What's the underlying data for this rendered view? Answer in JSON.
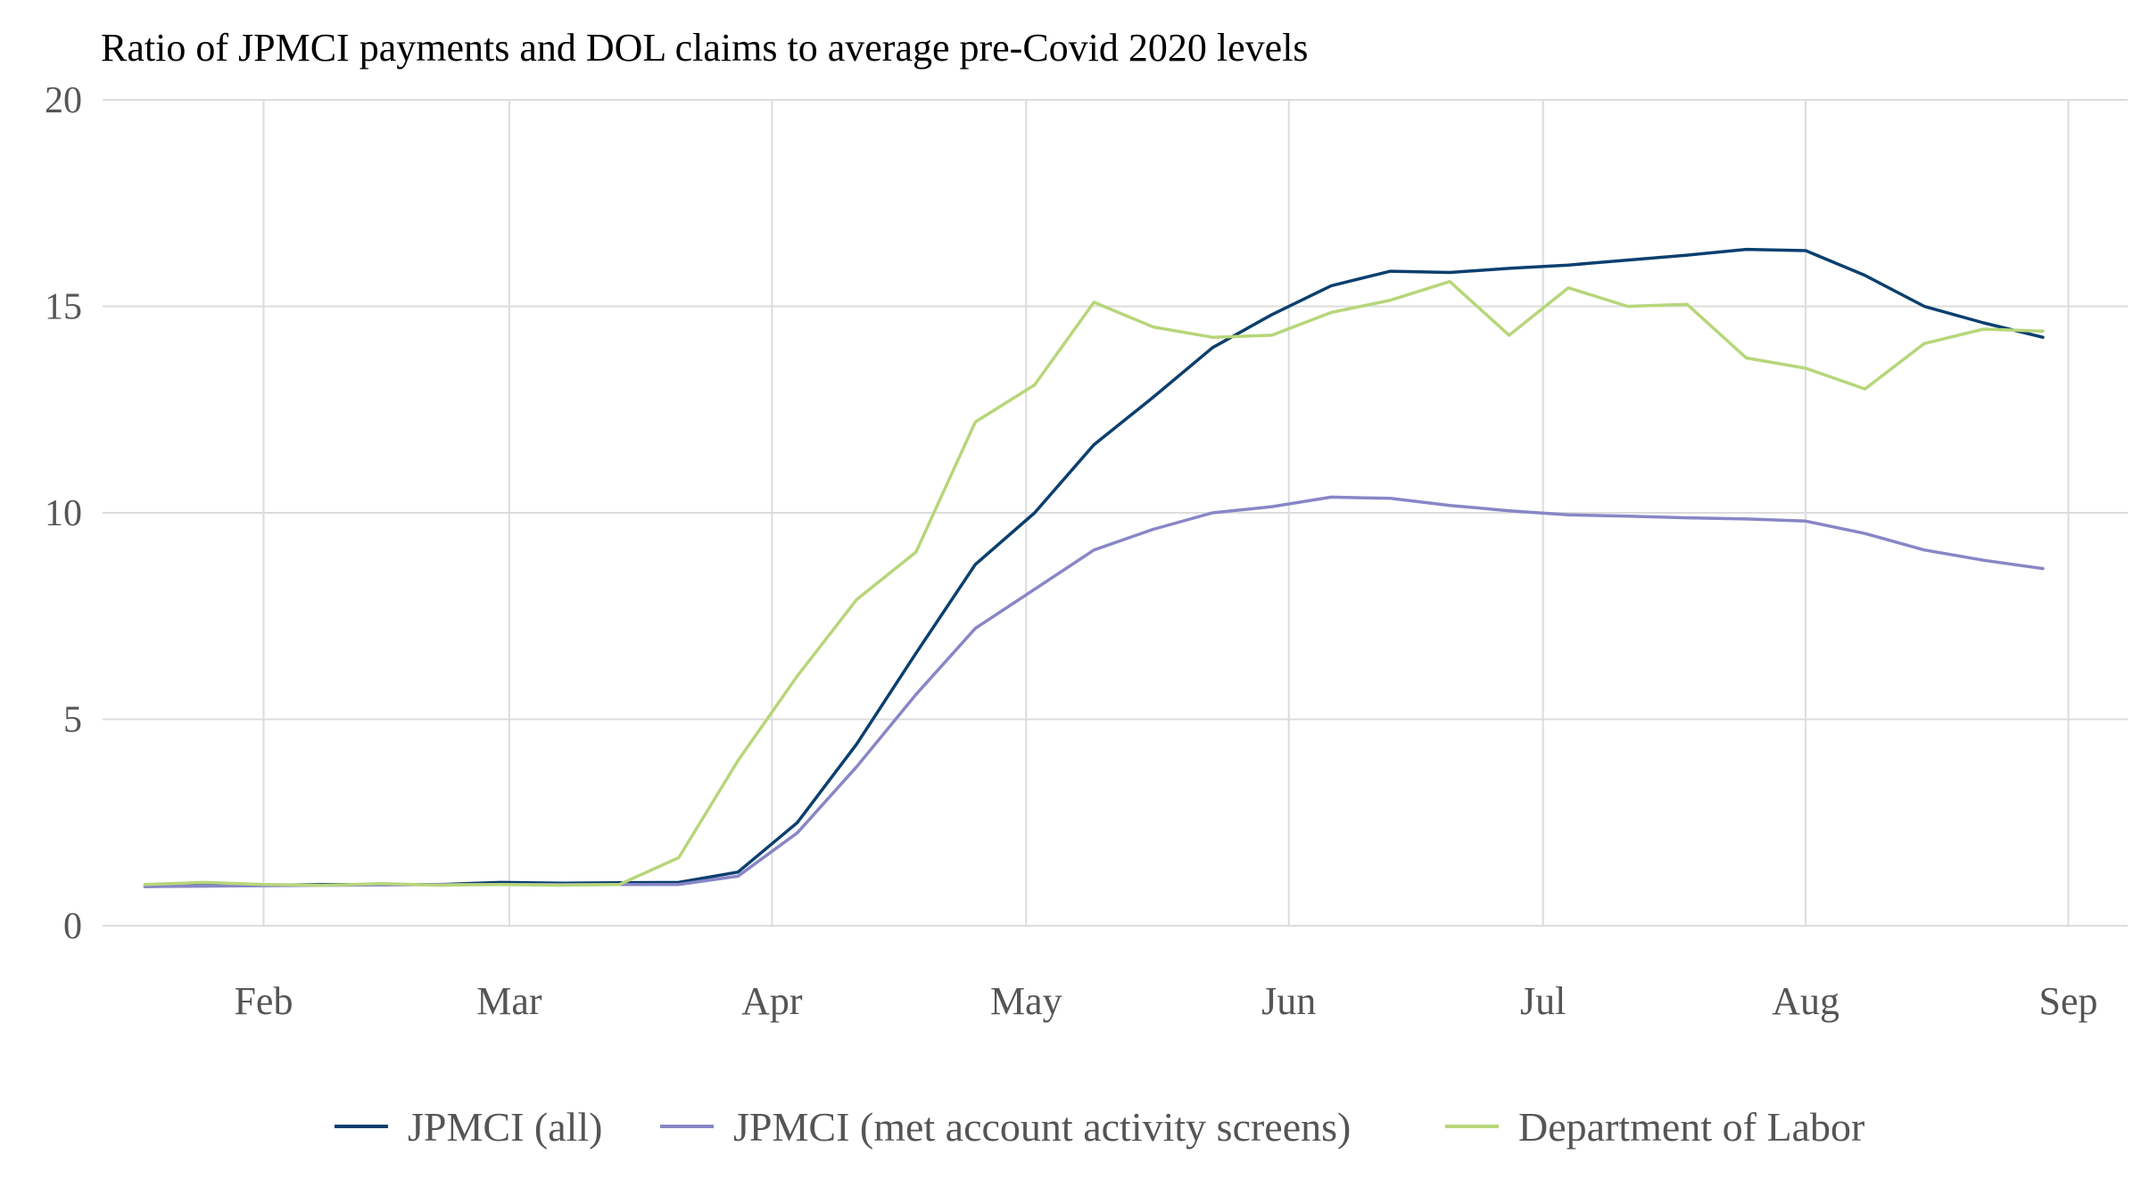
{
  "chart_data": {
    "type": "line",
    "title": "Ratio of JPMCI payments and DOL claims to average pre-Covid 2020 levels",
    "xlabel": "",
    "ylabel": "",
    "ylim": [
      0,
      20
    ],
    "yticks": [
      0,
      5,
      10,
      15,
      20
    ],
    "xlim": [
      "2020-01-13",
      "2020-09-08"
    ],
    "xticks": [
      {
        "date": "2020-02-01",
        "label": "Feb"
      },
      {
        "date": "2020-03-01",
        "label": "Mar"
      },
      {
        "date": "2020-04-01",
        "label": "Apr"
      },
      {
        "date": "2020-05-01",
        "label": "May"
      },
      {
        "date": "2020-06-01",
        "label": "Jun"
      },
      {
        "date": "2020-07-01",
        "label": "Jul"
      },
      {
        "date": "2020-08-01",
        "label": "Aug"
      },
      {
        "date": "2020-09-01",
        "label": "Sep"
      }
    ],
    "grid": true,
    "legend_position": "bottom",
    "x": [
      "2020-01-18",
      "2020-01-25",
      "2020-02-01",
      "2020-02-08",
      "2020-02-15",
      "2020-02-22",
      "2020-02-29",
      "2020-03-07",
      "2020-03-14",
      "2020-03-21",
      "2020-03-28",
      "2020-04-04",
      "2020-04-11",
      "2020-04-18",
      "2020-04-25",
      "2020-05-02",
      "2020-05-09",
      "2020-05-16",
      "2020-05-23",
      "2020-05-30",
      "2020-06-06",
      "2020-06-13",
      "2020-06-20",
      "2020-06-27",
      "2020-07-04",
      "2020-07-11",
      "2020-07-18",
      "2020-07-25",
      "2020-08-01",
      "2020-08-08",
      "2020-08-15",
      "2020-08-22",
      "2020-08-29"
    ],
    "series": [
      {
        "name": "JPMCI (all)",
        "color": "#0b3f6e",
        "values": [
          0.95,
          0.97,
          0.98,
          1.0,
          1.0,
          1.0,
          1.05,
          1.03,
          1.04,
          1.05,
          1.3,
          2.5,
          4.4,
          6.6,
          8.75,
          10.0,
          11.65,
          12.8,
          14.0,
          14.8,
          15.5,
          15.85,
          15.82,
          15.92,
          16.0,
          16.12,
          16.24,
          16.38,
          16.35,
          15.75,
          15.0,
          14.6,
          14.25
        ]
      },
      {
        "name": "JPMCI (met account activity screens)",
        "color": "#8886c6",
        "values": [
          0.95,
          0.96,
          0.97,
          0.98,
          0.99,
          1.0,
          1.0,
          1.0,
          1.0,
          1.0,
          1.2,
          2.25,
          3.85,
          5.6,
          7.2,
          8.15,
          9.1,
          9.6,
          10.0,
          10.15,
          10.38,
          10.35,
          10.18,
          10.05,
          9.95,
          9.92,
          9.88,
          9.85,
          9.8,
          9.5,
          9.1,
          8.85,
          8.65
        ]
      },
      {
        "name": "Department of Labor",
        "color": "#b7d67a",
        "values": [
          1.0,
          1.05,
          1.0,
          0.98,
          1.02,
          0.98,
          1.0,
          0.98,
          1.0,
          1.65,
          4.0,
          6.05,
          7.9,
          9.05,
          12.2,
          13.1,
          15.1,
          14.5,
          14.25,
          14.3,
          14.85,
          15.15,
          15.6,
          14.3,
          15.45,
          15.0,
          15.05,
          13.75,
          13.5,
          13.0,
          14.1,
          14.45,
          14.4
        ]
      }
    ]
  }
}
